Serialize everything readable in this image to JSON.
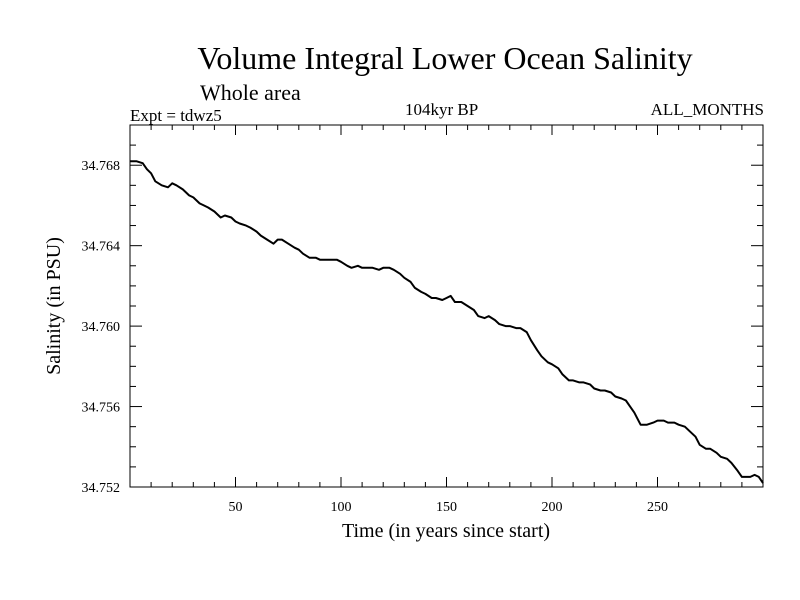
{
  "chart_data": {
    "type": "line",
    "title": "Volume Integral Lower Ocean Salinity",
    "subtitle": "Whole area",
    "expt_label": "Expt = tdwz5",
    "period_label": "104kyr BP",
    "months_label": "ALL_MONTHS",
    "xlabel": "Time (in years since start)",
    "ylabel": "Salinity (in PSU)",
    "xlim": [
      0,
      300
    ],
    "ylim": [
      34.752,
      34.77
    ],
    "xticks": [
      50,
      100,
      150,
      200,
      250
    ],
    "yticks": [
      34.752,
      34.756,
      34.76,
      34.764,
      34.768
    ],
    "ytick_labels": [
      "34.752",
      "34.756",
      "34.760",
      "34.764",
      "34.768"
    ],
    "grid": false,
    "color": "#000000",
    "series": [
      {
        "x": [
          0,
          3,
          6,
          8,
          10,
          12,
          15,
          18,
          20,
          22,
          25,
          28,
          30,
          33,
          35,
          37,
          40,
          43,
          45,
          48,
          50,
          52,
          55,
          57,
          60,
          62,
          65,
          68,
          70,
          72,
          75,
          78,
          80,
          82,
          85,
          88,
          90,
          93,
          95,
          98,
          100,
          103,
          105,
          108,
          110,
          113,
          115,
          118,
          120,
          123,
          125,
          128,
          130,
          133,
          135,
          138,
          140,
          143,
          145,
          148,
          150,
          152,
          154,
          157,
          160,
          163,
          165,
          168,
          170,
          173,
          175,
          178,
          180,
          183,
          185,
          188,
          190,
          193,
          195,
          198,
          200,
          203,
          205,
          208,
          210,
          213,
          215,
          218,
          220,
          223,
          225,
          228,
          230,
          233,
          235,
          237,
          239,
          242,
          245,
          248,
          250,
          253,
          255,
          258,
          260,
          263,
          265,
          268,
          270,
          273,
          275,
          278,
          280,
          283,
          285,
          288,
          290,
          292,
          294,
          296,
          298,
          300
        ],
        "y": [
          34.7682,
          34.7682,
          34.7681,
          34.7678,
          34.7676,
          34.7672,
          34.767,
          34.7669,
          34.7671,
          34.767,
          34.7668,
          34.7665,
          34.7664,
          34.7661,
          34.766,
          34.7659,
          34.7657,
          34.7654,
          34.7655,
          34.7654,
          34.7652,
          34.7651,
          34.765,
          34.7649,
          34.7647,
          34.7645,
          34.7643,
          34.7641,
          34.7643,
          34.7643,
          34.7641,
          34.7639,
          34.7638,
          34.7636,
          34.7634,
          34.7634,
          34.7633,
          34.7633,
          34.7633,
          34.7633,
          34.7632,
          34.763,
          34.7629,
          34.763,
          34.7629,
          34.7629,
          34.7629,
          34.7628,
          34.7629,
          34.7629,
          34.7628,
          34.7626,
          34.7624,
          34.7622,
          34.7619,
          34.7617,
          34.7616,
          34.7614,
          34.7614,
          34.7613,
          34.7614,
          34.7615,
          34.7612,
          34.7612,
          34.761,
          34.7608,
          34.7605,
          34.7604,
          34.7605,
          34.7603,
          34.7601,
          34.76,
          34.76,
          34.7599,
          34.7599,
          34.7597,
          34.7593,
          34.7588,
          34.7585,
          34.7582,
          34.7581,
          34.7579,
          34.7576,
          34.7573,
          34.7573,
          34.7572,
          34.7572,
          34.7571,
          34.7569,
          34.7568,
          34.7568,
          34.7567,
          34.7565,
          34.7564,
          34.7563,
          34.756,
          34.7557,
          34.7551,
          34.7551,
          34.7552,
          34.7553,
          34.7553,
          34.7552,
          34.7552,
          34.7551,
          34.755,
          34.7548,
          34.7545,
          34.7541,
          34.7539,
          34.7539,
          34.7537,
          34.7535,
          34.7534,
          34.7532,
          34.7528,
          34.7525,
          34.7525,
          34.7525,
          34.7526,
          34.7525,
          34.7522
        ]
      }
    ]
  }
}
